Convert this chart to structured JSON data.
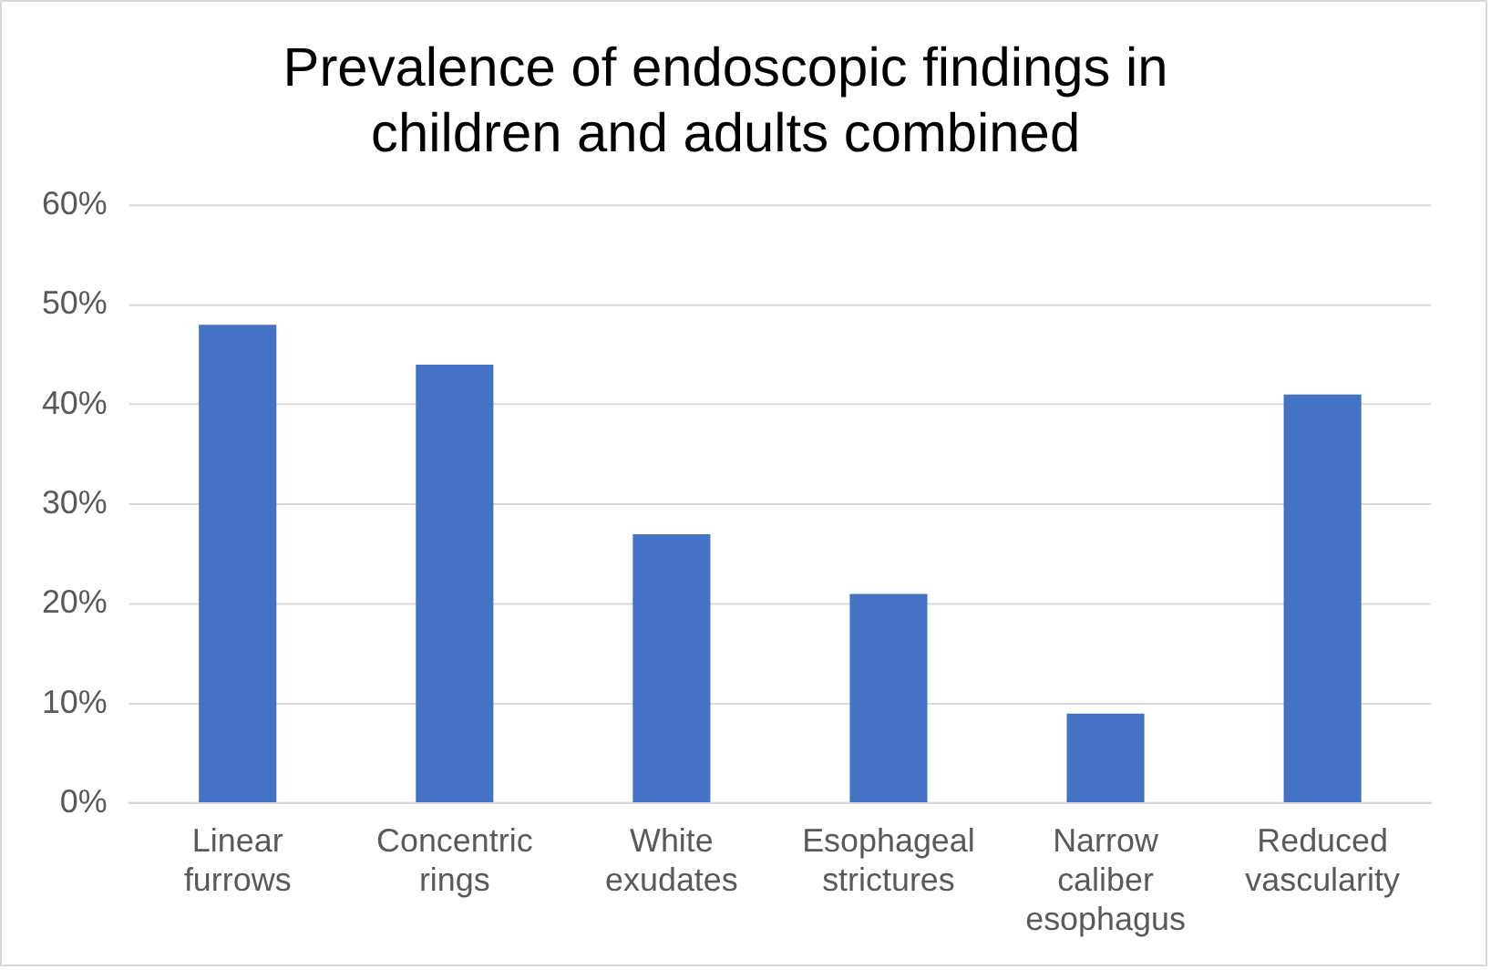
{
  "chart_data": {
    "type": "bar",
    "title": "Prevalence of endoscopic findings in children and adults combined",
    "categories": [
      "Linear furrows",
      "Concentric rings",
      "White exudates",
      "Esophageal strictures",
      "Narrow caliber esophagus",
      "Reduced vascularity"
    ],
    "values": [
      48,
      44,
      27,
      21,
      9,
      41
    ],
    "color": "#4472c4",
    "ylim": [
      0,
      60
    ],
    "yticks": [
      {
        "value": 0,
        "label": "0%"
      },
      {
        "value": 10,
        "label": "10%"
      },
      {
        "value": 20,
        "label": "20%"
      },
      {
        "value": 30,
        "label": "30%"
      },
      {
        "value": 40,
        "label": "40%"
      },
      {
        "value": 50,
        "label": "50%"
      },
      {
        "value": 60,
        "label": "60%"
      }
    ],
    "grid": "y",
    "legend": false
  }
}
